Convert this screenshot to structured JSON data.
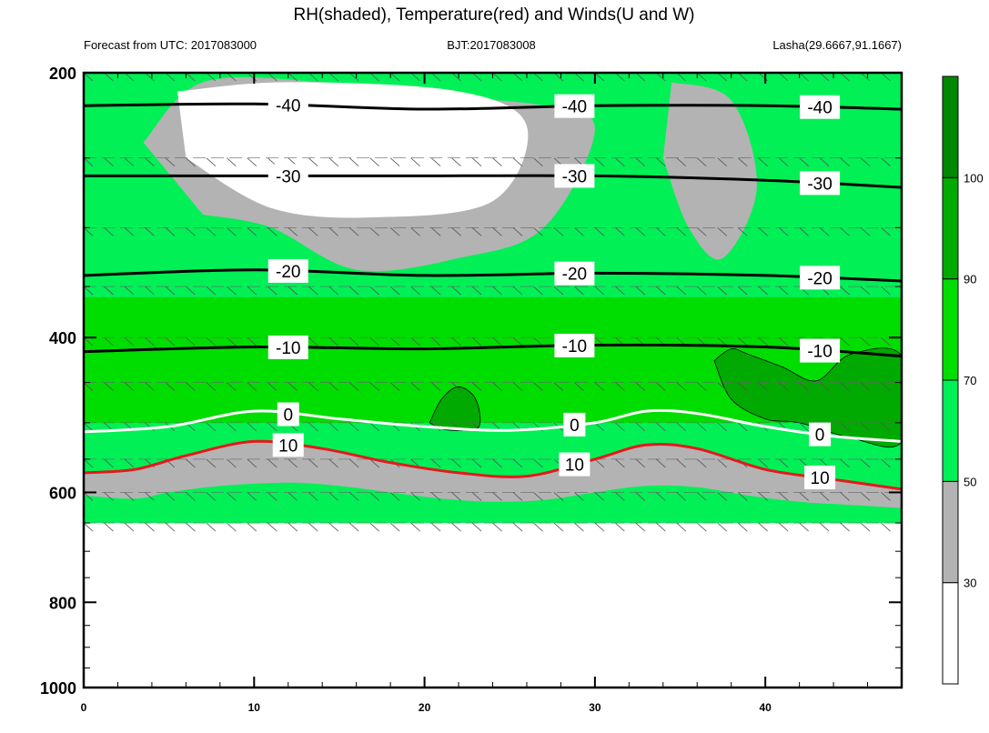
{
  "chart_data": {
    "type": "heatmap",
    "title": "RH(shaded), Temperature(red) and Winds(U and W)",
    "subtitle_left": "Forecast from UTC: 2017083000",
    "subtitle_center": "BJT:2017083008",
    "subtitle_right": "Lasha(29.6667,91.1667)",
    "xlim": [
      0,
      48
    ],
    "ylim": [
      1000,
      200
    ],
    "y_scale": "log-pressure",
    "x_ticks": [
      0,
      10,
      20,
      30,
      40
    ],
    "y_ticks": [
      200,
      400,
      600,
      800,
      1000
    ],
    "grid": false,
    "colorbar": {
      "levels": [
        30,
        50,
        70,
        90,
        100
      ],
      "colors": [
        "#ffffff",
        "#b3b3b3",
        "#00f056",
        "#00dd00",
        "#00aa00",
        "#008800"
      ]
    },
    "rh_fields": [
      {
        "level": "50-70",
        "x": [
          0,
          48
        ],
        "ytop": [
          200,
          200
        ],
        "ybot": [
          650,
          650
        ]
      },
      {
        "level": "<50",
        "x": [
          0,
          3,
          5,
          8,
          12,
          15,
          18,
          21,
          24,
          27,
          30,
          33,
          36,
          39,
          42,
          45,
          48
        ],
        "ybot": [
          605,
          610,
          600,
          590,
          585,
          590,
          600,
          610,
          615,
          612,
          600,
          590,
          592,
          605,
          615,
          620,
          625
        ]
      },
      {
        "level": ">=90",
        "x": [
          20.3,
          21,
          22,
          23,
          23.2,
          22,
          21
        ],
        "y": [
          500,
          470,
          455,
          470,
          505,
          510,
          508
        ]
      },
      {
        "level": ">=90",
        "x": [
          37,
          38,
          39,
          41,
          43,
          45,
          48,
          48,
          45,
          42,
          40,
          38
        ],
        "y": [
          425,
          412,
          418,
          432,
          448,
          418,
          420,
          525,
          520,
          500,
          495,
          470
        ]
      }
    ],
    "temperature_contours": [
      {
        "value": -40,
        "x": [
          0,
          10,
          20,
          30,
          40,
          48
        ],
        "y": [
          218,
          217,
          220,
          218,
          218,
          220
        ]
      },
      {
        "value": -30,
        "x": [
          0,
          10,
          20,
          30,
          40,
          48
        ],
        "y": [
          262,
          262,
          262,
          262,
          265,
          270
        ]
      },
      {
        "value": -20,
        "x": [
          0,
          10,
          20,
          30,
          40,
          48
        ],
        "y": [
          340,
          335,
          340,
          338,
          340,
          345
        ]
      },
      {
        "value": -10,
        "x": [
          0,
          10,
          20,
          30,
          40,
          48
        ],
        "y": [
          415,
          410,
          412,
          408,
          410,
          420
        ]
      },
      {
        "value": 0,
        "x": [
          0,
          5,
          10,
          15,
          20,
          25,
          30,
          33,
          36,
          40,
          44,
          48
        ],
        "y": [
          512,
          505,
          485,
          495,
          505,
          510,
          500,
          485,
          488,
          505,
          518,
          525
        ]
      },
      {
        "value": 10,
        "x": [
          0,
          3,
          6,
          10,
          14,
          18,
          22,
          26,
          30,
          33,
          36,
          40,
          44,
          48
        ],
        "y": [
          570,
          565,
          545,
          525,
          535,
          555,
          570,
          575,
          550,
          530,
          535,
          565,
          580,
          595
        ]
      }
    ],
    "wind_rows": [
      200,
      250,
      300,
      350,
      400,
      450,
      500,
      550,
      600,
      650
    ]
  }
}
